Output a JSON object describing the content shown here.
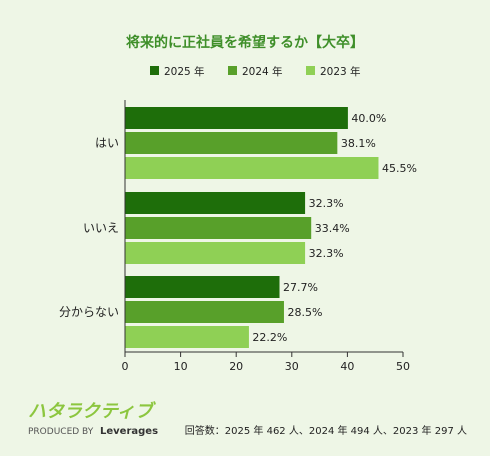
{
  "chart_data": {
    "type": "bar",
    "orientation": "horizontal",
    "title": "将来的に正社員を希望するか【大卒】",
    "categories": [
      "はい",
      "いいえ",
      "分からない"
    ],
    "series": [
      {
        "name": "2025 年",
        "color": "#1e6e0a",
        "values": [
          40.0,
          32.3,
          27.7
        ],
        "labels": [
          "40.0%",
          "32.3%",
          "27.7%"
        ]
      },
      {
        "name": "2024 年",
        "color": "#58a02a",
        "values": [
          38.1,
          33.4,
          28.5
        ],
        "labels": [
          "38.1%",
          "33.4%",
          "28.5%"
        ]
      },
      {
        "name": "2023 年",
        "color": "#8fd055",
        "values": [
          45.5,
          32.3,
          22.2
        ],
        "labels": [
          "45.5%",
          "32.3%",
          "22.2%"
        ]
      }
    ],
    "xlim": [
      0,
      50
    ],
    "xticks": [
      "0",
      "10",
      "20",
      "30",
      "40",
      "50"
    ],
    "legend_position": "top",
    "grid": false
  },
  "footer": {
    "note": "回答数：2025 年 462 人、2024 年 494 人、2023 年 297 人",
    "logo": "ハタラクティブ",
    "produced_by": "PRODUCED BY",
    "brand": "Leverages"
  }
}
